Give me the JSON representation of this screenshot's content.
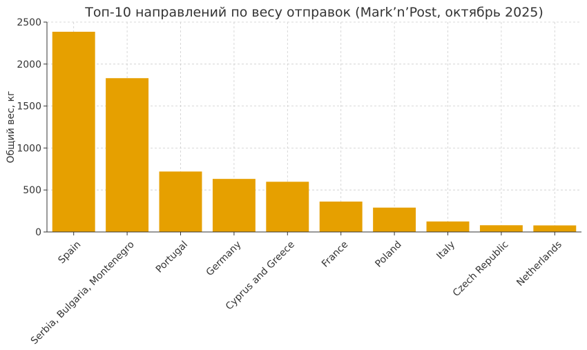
{
  "chart_data": {
    "type": "bar",
    "title": "Топ-10 направлений по весу отправок (Mark’n’Post, октябрь 2025)",
    "xlabel": "",
    "ylabel": "Общий вес, кг",
    "categories": [
      "Spain",
      "Serbia, Bulgaria, Montenegro",
      "Portugal",
      "Germany",
      "Cyprus and Greece",
      "France",
      "Poland",
      "Italy",
      "Czech Republic",
      "Netherlands"
    ],
    "values": [
      2385,
      1832,
      720,
      632,
      598,
      362,
      290,
      125,
      80,
      78
    ],
    "ylim": [
      0,
      2500
    ],
    "yticks": [
      0,
      500,
      1000,
      1500,
      2000,
      2500
    ],
    "grid": true,
    "bar_color": "#e6a000"
  }
}
